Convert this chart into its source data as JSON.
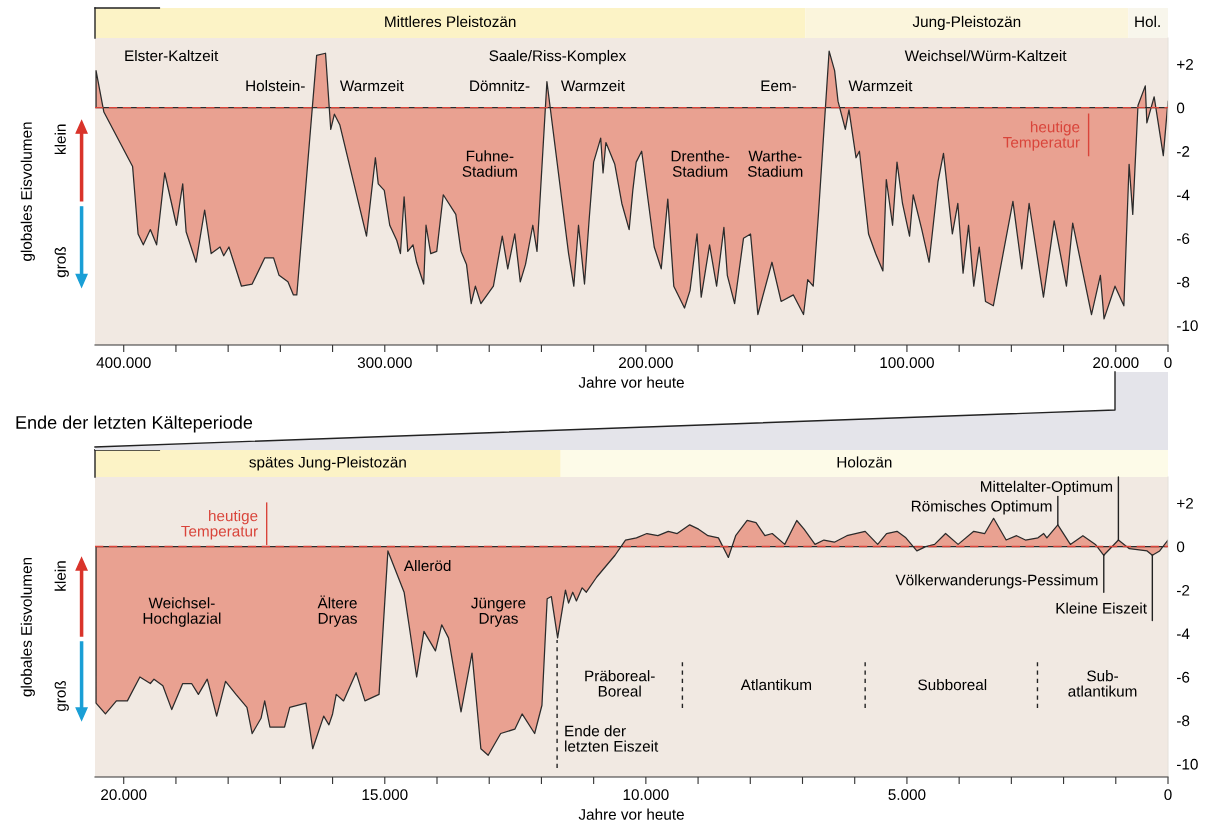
{
  "chart_data": [
    {
      "type": "area",
      "xlabel": "Jahre vor heute",
      "ylabel": "globales Eisvolumen",
      "xlim": [
        411000,
        0
      ],
      "ylim": [
        -10.9,
        3.2
      ],
      "xticks": [
        {
          "value": 400000,
          "label": "400.000"
        },
        {
          "value": 380000,
          "label": null
        },
        {
          "value": 360000,
          "label": null
        },
        {
          "value": 340000,
          "label": null
        },
        {
          "value": 320000,
          "label": null
        },
        {
          "value": 300000,
          "label": "300.000"
        },
        {
          "value": 280000,
          "label": null
        },
        {
          "value": 260000,
          "label": null
        },
        {
          "value": 240000,
          "label": null
        },
        {
          "value": 220000,
          "label": null
        },
        {
          "value": 200000,
          "label": "200.000"
        },
        {
          "value": 180000,
          "label": null
        },
        {
          "value": 160000,
          "label": null
        },
        {
          "value": 140000,
          "label": null
        },
        {
          "value": 120000,
          "label": null
        },
        {
          "value": 100000,
          "label": "100.000"
        },
        {
          "value": 80000,
          "label": null
        },
        {
          "value": 60000,
          "label": null
        },
        {
          "value": 40000,
          "label": null
        },
        {
          "value": 20000,
          "label": "20.000"
        },
        0
      ],
      "yticks": [
        {
          "value": 2,
          "label": "+2"
        },
        0,
        -2,
        -4,
        -6,
        -8,
        -10
      ],
      "grid": false,
      "ref_lines": [
        {
          "axis": "y",
          "value": 0,
          "label": "heutige\nTemperatur",
          "color": "#d9443a",
          "line_style": "dashed"
        }
      ],
      "annotations": [
        "Elster-Kaltzeit",
        "Holstein-",
        "Warmzeit",
        "Saale/Riss-Komplex",
        "Dömnitz-",
        "Warmzeit",
        "Fuhne-\nStadium",
        "Drenthe-\nStadium",
        "Warthe-\nStadium",
        "Eem-",
        "Warmzeit",
        "Weichsel/Würm-Kaltzeit",
        "klein",
        "groß",
        "Mittleres Pleistozän",
        "Jung-Pleistozän",
        "Hol."
      ],
      "series": [
        {
          "color": "#e9a191",
          "x": [
            410600,
            407600,
            396600,
            394500,
            392500,
            389800,
            387400,
            384300,
            379800,
            377400,
            376100,
            372300,
            369000,
            366500,
            363100,
            361700,
            359700,
            354900,
            350800,
            346000,
            342600,
            340500,
            337100,
            335000,
            333700,
            326100,
            322700,
            320700,
            319300,
            317200,
            307000,
            303600,
            302500,
            300200,
            298100,
            295400,
            294000,
            292600,
            291200,
            289200,
            287800,
            285100,
            284200,
            282400,
            280100,
            277600,
            272800,
            270800,
            268700,
            266900,
            265300,
            263200,
            258400,
            255000,
            252900,
            250200,
            248100,
            246100,
            243300,
            241700,
            237900,
            229600,
            227600,
            225800,
            223500,
            221700,
            220000,
            217300,
            216400,
            215300,
            211900,
            209200,
            206400,
            205000,
            203700,
            201600,
            196800,
            194100,
            191600,
            189300,
            185200,
            183100,
            180400,
            178800,
            175600,
            172900,
            170100,
            168800,
            166000,
            162600,
            159900,
            157100,
            151700,
            148200,
            143500,
            139600,
            138000,
            135900,
            133900,
            129800,
            127700,
            126400,
            123600,
            122200,
            119500,
            118200,
            114700,
            112000,
            109200,
            107900,
            105500,
            103800,
            101700,
            99000,
            97600,
            94300,
            91500,
            88100,
            86000,
            82600,
            80500,
            78500,
            76400,
            74400,
            72300,
            69900,
            66900,
            59400,
            56000,
            53200,
            47700,
            43600,
            38900,
            36500,
            29300,
            25900,
            24500,
            20300,
            16900,
            14900,
            13500,
            11500,
            8700,
            8100,
            5300,
            1800,
            0
          ],
          "values": [
            1.7,
            -0.2,
            -2.7,
            -5.8,
            -6.3,
            -5.6,
            -6.3,
            -3.0,
            -5.4,
            -3.5,
            -5.7,
            -7.1,
            -4.7,
            -6.7,
            -6.4,
            -6.8,
            -6.4,
            -8.2,
            -8.1,
            -6.9,
            -6.9,
            -7.7,
            -8.0,
            -8.6,
            -8.6,
            2.4,
            2.5,
            -1.0,
            -0.3,
            -0.8,
            -5.9,
            -2.3,
            -3.5,
            -3.8,
            -5.4,
            -6.1,
            -6.7,
            -4.1,
            -6.6,
            -6.3,
            -7.1,
            -8.1,
            -5.4,
            -6.7,
            -6.6,
            -4.0,
            -4.9,
            -6.6,
            -7.2,
            -9.0,
            -8.2,
            -9.0,
            -8.2,
            -5.9,
            -7.4,
            -5.8,
            -8.0,
            -7.2,
            -5.4,
            -6.6,
            1.2,
            -6.7,
            -8.2,
            -5.4,
            -8.1,
            -5.1,
            -2.5,
            -1.4,
            -3.0,
            -1.6,
            -2.6,
            -4.4,
            -5.6,
            -3.8,
            -2.5,
            -2.0,
            -6.4,
            -7.4,
            -4.2,
            -8.2,
            -9.2,
            -8.4,
            -5.8,
            -8.7,
            -6.3,
            -8.2,
            -5.5,
            -7.7,
            -9.0,
            -6.0,
            -5.8,
            -9.5,
            -7.1,
            -8.9,
            -8.6,
            -9.5,
            -7.9,
            -8.2,
            -4.9,
            2.6,
            1.7,
            0.3,
            -1.0,
            -0.1,
            -2.3,
            -2.0,
            -5.8,
            -6.7,
            -7.5,
            -3.3,
            -5.4,
            -2.5,
            -4.4,
            -5.9,
            -4.0,
            -5.6,
            -7.1,
            -3.4,
            -2.1,
            -5.8,
            -4.4,
            -7.6,
            -5.4,
            -8.2,
            -6.4,
            -8.9,
            -9.1,
            -4.3,
            -7.4,
            -4.4,
            -8.7,
            -5.2,
            -8.2,
            -5.3,
            -9.5,
            -7.7,
            -9.7,
            -8.2,
            -9.1,
            -2.6,
            -4.9,
            0.1,
            1.0,
            -0.7,
            0.5,
            -2.2,
            0.3
          ]
        }
      ]
    },
    {
      "type": "area",
      "title": "Ende der letzten Kälteperiode",
      "xlabel": "Jahre vor heute",
      "ylabel": "globales Eisvolumen",
      "xlim": [
        20550,
        0
      ],
      "ylim": [
        -10.6,
        3.2
      ],
      "xticks": [
        {
          "value": 20000,
          "label": "20.000"
        },
        {
          "value": 19000,
          "label": null
        },
        {
          "value": 18000,
          "label": null
        },
        {
          "value": 17000,
          "label": null
        },
        {
          "value": 16000,
          "label": null
        },
        {
          "value": 15000,
          "label": "15.000"
        },
        {
          "value": 14000,
          "label": null
        },
        {
          "value": 13000,
          "label": null
        },
        {
          "value": 12000,
          "label": null
        },
        {
          "value": 11000,
          "label": null
        },
        {
          "value": 10000,
          "label": "10.000"
        },
        {
          "value": 9000,
          "label": null
        },
        {
          "value": 8000,
          "label": null
        },
        {
          "value": 7000,
          "label": null
        },
        {
          "value": 6000,
          "label": null
        },
        {
          "value": 5000,
          "label": "5.000"
        },
        {
          "value": 4000,
          "label": null
        },
        {
          "value": 3000,
          "label": null
        },
        {
          "value": 2000,
          "label": null
        },
        {
          "value": 1000,
          "label": null
        },
        0
      ],
      "yticks": [
        {
          "value": 2,
          "label": "+2"
        },
        0,
        -2,
        -4,
        -6,
        -8,
        -10
      ],
      "grid": false,
      "ref_lines": [
        {
          "axis": "y",
          "value": 0,
          "label": "heutige\nTemperatur",
          "color": "#d9443a",
          "line_style": "dashed"
        },
        {
          "axis": "x",
          "value": 11700,
          "label": "Ende der\nletzten Eiszeit",
          "color": "#222222",
          "line_style": "dashed"
        },
        {
          "axis": "x",
          "value": 9300,
          "label": null,
          "color": "#222222",
          "line_style": "dashed"
        },
        {
          "axis": "x",
          "value": 5800,
          "label": null,
          "color": "#222222",
          "line_style": "dashed"
        },
        {
          "axis": "x",
          "value": 2500,
          "label": null,
          "color": "#222222",
          "line_style": "dashed"
        }
      ],
      "annotations": [
        "Weichsel-\nHochglazial",
        "Ältere\nDryas",
        "Alleröd",
        "Jüngere\nDryas",
        "Präboreal-\nBoreal",
        "Atlantikum",
        "Subboreal",
        "Sub-\natlantikum",
        {
          "text": "Mittelalter-Optimum",
          "x": 950,
          "y": 0.3
        },
        {
          "text": "Römisches Optimum",
          "x": 2110,
          "y": 1.0
        },
        {
          "text": "Völkerwanderungs-Pessimum",
          "x": 1230,
          "y": -0.4
        },
        {
          "text": "Kleine Eiszeit",
          "x": 300,
          "y": -0.4
        },
        "klein",
        "groß",
        "spätes Jung-Pleistozän",
        "Holozän"
      ],
      "series": [
        {
          "color": "#e9a191",
          "x": [
            20530,
            20350,
            20140,
            19930,
            19690,
            19490,
            19420,
            19250,
            19080,
            18870,
            18700,
            18570,
            18400,
            18220,
            18050,
            17850,
            17640,
            17540,
            17370,
            17300,
            17200,
            16920,
            16820,
            16510,
            16380,
            16170,
            16070,
            16000,
            15930,
            15790,
            15550,
            15380,
            15110,
            14940,
            14630,
            14530,
            14390,
            14250,
            14030,
            13910,
            13780,
            13540,
            13330,
            13160,
            13020,
            12780,
            12510,
            12370,
            12130,
            11990,
            11890,
            11810,
            11690,
            11540,
            11480,
            11400,
            11330,
            11220,
            11140,
            10940,
            10590,
            10390,
            10180,
            9980,
            9770,
            9570,
            9400,
            9160,
            8990,
            8810,
            8610,
            8420,
            8280,
            8060,
            7890,
            7720,
            7580,
            7340,
            7110,
            6970,
            6760,
            6590,
            6390,
            6150,
            5800,
            5560,
            5390,
            5190,
            5020,
            4810,
            4640,
            4470,
            4260,
            4020,
            3720,
            3510,
            3340,
            3100,
            2900,
            2730,
            2490,
            2380,
            2320,
            2110,
            1870,
            1630,
            1390,
            1230,
            950,
            740,
            400,
            300,
            160,
            0
          ],
          "values": [
            -7.2,
            -7.7,
            -7.1,
            -7.1,
            -6.0,
            -6.3,
            -6.1,
            -6.4,
            -7.5,
            -6.3,
            -6.3,
            -6.8,
            -6.1,
            -7.8,
            -6.2,
            -6.8,
            -7.4,
            -8.6,
            -7.9,
            -7.1,
            -8.3,
            -8.3,
            -7.4,
            -7.2,
            -9.3,
            -7.8,
            -8.2,
            -7.7,
            -6.8,
            -7.1,
            -5.8,
            -7.1,
            -6.8,
            -0.2,
            -2.1,
            -3.7,
            -6.0,
            -3.9,
            -4.8,
            -3.6,
            -4.2,
            -7.6,
            -4.9,
            -9.3,
            -9.6,
            -8.6,
            -8.4,
            -7.7,
            -8.6,
            -7.3,
            -2.4,
            -2.3,
            -4.2,
            -2.0,
            -2.6,
            -2.1,
            -2.5,
            -1.9,
            -2.1,
            -1.4,
            -0.4,
            0.3,
            0.4,
            0.6,
            0.5,
            0.7,
            0.6,
            1.0,
            0.8,
            0.5,
            0.4,
            -0.5,
            0.5,
            1.2,
            1.1,
            0.5,
            0.6,
            0.1,
            1.2,
            0.8,
            0.1,
            0.3,
            0.2,
            0.5,
            0.7,
            0.1,
            0.6,
            0.7,
            0.4,
            -0.2,
            0.0,
            0.1,
            0.6,
            0.1,
            0.7,
            0.6,
            1.3,
            0.3,
            0.5,
            0.3,
            0.4,
            0.6,
            0.4,
            1.0,
            0.1,
            0.5,
            0.1,
            -0.4,
            0.3,
            -0.1,
            -0.2,
            -0.4,
            -0.2,
            0.3
          ]
        }
      ]
    }
  ]
}
